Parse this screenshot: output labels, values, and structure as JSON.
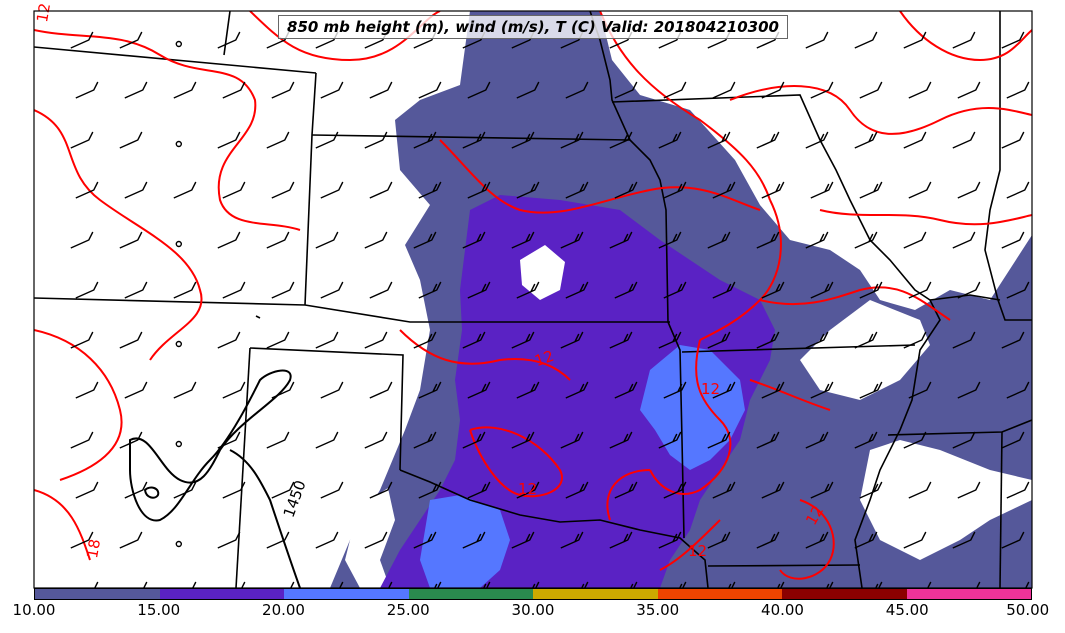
{
  "title": "850 mb height (m), wind (m/s), T (C) Valid: 201804210300",
  "contour_labels": {
    "temp_top_left": "12",
    "temp_center": "12",
    "temp_ok": "12",
    "temp_ar": "12",
    "temp_bottom_ar": "12",
    "temp_bottom_right": "12",
    "temp_bottom_left": "18",
    "height": "1450"
  },
  "colors": {
    "temperature_contour": "#ff0000",
    "height_contour": "#000000",
    "borders": "#000000",
    "barbs": "#000000"
  },
  "colorbar": {
    "ticks": [
      "10.00",
      "15.00",
      "20.00",
      "25.00",
      "30.00",
      "35.00",
      "40.00",
      "45.00",
      "50.00"
    ],
    "colors": [
      "#55589a",
      "#5a22c4",
      "#5577ff",
      "#2a8a4e",
      "#ccaa00",
      "#ee4400",
      "#8b0000",
      "#ee3399"
    ]
  }
}
